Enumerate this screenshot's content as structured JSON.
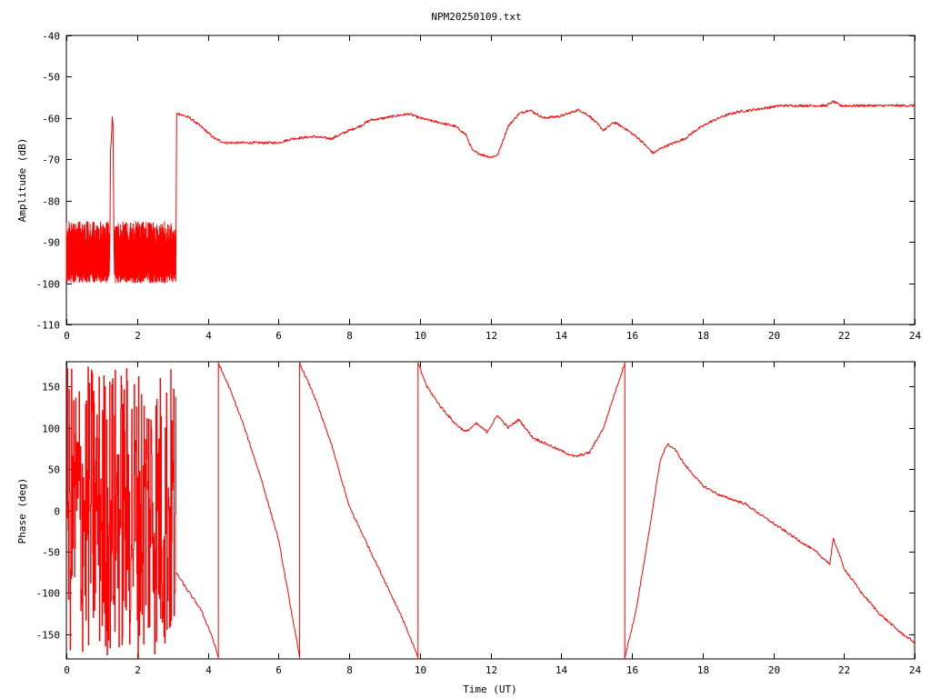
{
  "title": "NPM20250109.txt",
  "chart_data": [
    {
      "type": "line",
      "name": "amplitude",
      "title": "NPM20250109.txt",
      "xlabel": "",
      "ylabel": "Amplitude (dB)",
      "xlim": [
        0,
        24
      ],
      "ylim": [
        -110,
        -40
      ],
      "xticks": [
        0,
        2,
        4,
        6,
        8,
        10,
        12,
        14,
        16,
        18,
        20,
        22,
        24
      ],
      "yticks": [
        -110,
        -100,
        -90,
        -80,
        -70,
        -60,
        -50,
        -40
      ],
      "grid": false,
      "color": "#ff0000",
      "series": [
        {
          "x": [
            0,
            0.1,
            0.3,
            0.5,
            0.6,
            0.8,
            1.0,
            1.2,
            1.22,
            1.25,
            1.3,
            1.32,
            1.35,
            1.5,
            1.8,
            2.2,
            2.6,
            3.0,
            3.1,
            3.12,
            3.2,
            3.5,
            3.8,
            4.2,
            4.5,
            5.0,
            5.5,
            6.0,
            6.4,
            7.0,
            7.5,
            8.0,
            8.3,
            8.6,
            9.0,
            9.3,
            9.7,
            10.0,
            10.5,
            11.0,
            11.3,
            11.5,
            11.8,
            12.0,
            12.2,
            12.5,
            12.8,
            13.1,
            13.5,
            14.0,
            14.5,
            14.8,
            15.2,
            15.5,
            15.8,
            16.2,
            16.6,
            16.9,
            17.2,
            17.5,
            17.8,
            18.2,
            18.6,
            19.0,
            19.6,
            20.2,
            20.8,
            21.5,
            21.7,
            21.9,
            22.2,
            22.6,
            23.0,
            23.5,
            24.0
          ],
          "y": [
            -93,
            -91,
            -95,
            -92,
            -96,
            -90,
            -94,
            -92,
            -96,
            -68,
            -61,
            -60,
            -96,
            -91,
            -93,
            -94,
            -90,
            -95,
            -93,
            -59,
            -59,
            -60,
            -62,
            -65,
            -66,
            -66,
            -66,
            -66,
            -65,
            -64.5,
            -65,
            -63,
            -62,
            -60.5,
            -60,
            -59.5,
            -59,
            -60,
            -61,
            -62,
            -64,
            -68,
            -69,
            -69.5,
            -69,
            -62,
            -59,
            -58,
            -60,
            -59.5,
            -58,
            -59.5,
            -63,
            -61,
            -62.5,
            -65,
            -68.5,
            -67,
            -66,
            -65,
            -63,
            -61,
            -59.5,
            -58.5,
            -57.8,
            -57,
            -57,
            -57,
            -56,
            -57,
            -57,
            -57,
            -57,
            -57,
            -57
          ]
        }
      ]
    },
    {
      "type": "line",
      "name": "phase",
      "title": "",
      "xlabel": "Time (UT)",
      "ylabel": "Phase (deg)",
      "xlim": [
        0,
        24
      ],
      "ylim": [
        -180,
        180
      ],
      "xticks": [
        0,
        2,
        4,
        6,
        8,
        10,
        12,
        14,
        16,
        18,
        20,
        22,
        24
      ],
      "yticks": [
        -150,
        -100,
        -50,
        0,
        50,
        100,
        150
      ],
      "grid": false,
      "color": "#ff0000",
      "segments": [
        {
          "x": [
            3.1,
            3.4,
            3.8,
            4.1,
            4.3
          ],
          "y": [
            -75,
            -95,
            -120,
            -150,
            -178
          ]
        },
        {
          "x": [
            4.3,
            4.6,
            5.0,
            5.5,
            6.0,
            6.6
          ],
          "y": [
            178,
            150,
            105,
            40,
            -35,
            -178
          ]
        },
        {
          "x": [
            6.6,
            7.0,
            7.5,
            8.0,
            8.5,
            9.0,
            9.5,
            9.95
          ],
          "y": [
            178,
            140,
            80,
            5,
            -40,
            -85,
            -130,
            -178
          ]
        },
        {
          "x": [
            9.95,
            10.2,
            10.6,
            11.0,
            11.3,
            11.6,
            11.9,
            12.2,
            12.5,
            12.8,
            13.2,
            13.6,
            14.0,
            14.4,
            14.8,
            15.2,
            15.5,
            15.8
          ],
          "y": [
            178,
            150,
            125,
            105,
            95,
            105,
            95,
            115,
            100,
            110,
            88,
            80,
            72,
            65,
            70,
            100,
            140,
            178
          ]
        },
        {
          "x": [
            15.8,
            16.1,
            16.4,
            16.8,
            17.0,
            17.2,
            17.5,
            18.0,
            18.5,
            19.2,
            19.8,
            20.5,
            21.2,
            21.6,
            21.7,
            21.8,
            22.0,
            22.5,
            23.0,
            23.6,
            24.0
          ],
          "y": [
            -178,
            -125,
            -50,
            60,
            80,
            75,
            55,
            30,
            18,
            8,
            -10,
            -30,
            -50,
            -65,
            -35,
            -45,
            -70,
            -100,
            -125,
            -148,
            -160
          ]
        }
      ],
      "noise_region": {
        "x_range": [
          0,
          3.1
        ],
        "y_range": [
          -180,
          180
        ],
        "description": ""
      }
    }
  ]
}
